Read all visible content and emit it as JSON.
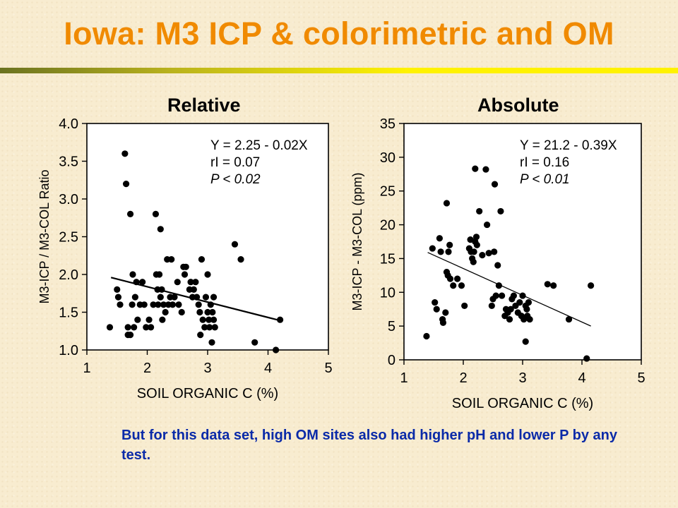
{
  "slide": {
    "title": "Iowa: M3 ICP & colorimetric and OM",
    "relative_heading": "Relative",
    "absolute_heading": "Absolute",
    "footnote": "But for this data set, high OM sites also had higher pH and lower P by any test."
  },
  "chart_data": [
    {
      "type": "scatter",
      "xlabel": "SOIL ORGANIC C (%)",
      "ylabel": "M3-ICP  /  M3-COL Ratio",
      "xlim": [
        1,
        5
      ],
      "ylim": [
        1.0,
        4.0
      ],
      "xticks": [
        "1",
        "2",
        "3",
        "4",
        "5"
      ],
      "yticks": [
        "1.0",
        "1.5",
        "2.0",
        "2.5",
        "3.0",
        "3.5",
        "4.0"
      ],
      "annotation": [
        "Y = 2.25 - 0.02X",
        "rI = 0.07",
        "P < 0.02"
      ],
      "regression": {
        "x1": 1.4,
        "y1": 1.96,
        "x2": 4.15,
        "y2": 1.4
      },
      "points": [
        [
          1.38,
          1.3
        ],
        [
          1.5,
          1.8
        ],
        [
          1.52,
          1.7
        ],
        [
          1.55,
          1.6
        ],
        [
          1.63,
          3.6
        ],
        [
          1.65,
          3.2
        ],
        [
          1.68,
          1.3
        ],
        [
          1.68,
          1.2
        ],
        [
          1.72,
          2.8
        ],
        [
          1.72,
          1.2
        ],
        [
          1.75,
          1.6
        ],
        [
          1.76,
          2.0
        ],
        [
          1.78,
          1.3
        ],
        [
          1.8,
          1.7
        ],
        [
          1.82,
          1.9
        ],
        [
          1.84,
          1.4
        ],
        [
          1.88,
          1.6
        ],
        [
          1.92,
          1.9
        ],
        [
          1.95,
          1.6
        ],
        [
          1.98,
          1.3
        ],
        [
          2.03,
          1.4
        ],
        [
          2.06,
          1.3
        ],
        [
          2.1,
          1.6
        ],
        [
          2.14,
          2.8
        ],
        [
          2.15,
          2.0
        ],
        [
          2.17,
          1.8
        ],
        [
          2.18,
          1.6
        ],
        [
          2.2,
          2.0
        ],
        [
          2.22,
          1.7
        ],
        [
          2.22,
          2.6
        ],
        [
          2.24,
          1.8
        ],
        [
          2.25,
          1.4
        ],
        [
          2.27,
          1.6
        ],
        [
          2.3,
          1.5
        ],
        [
          2.33,
          2.2
        ],
        [
          2.35,
          1.6
        ],
        [
          2.38,
          1.7
        ],
        [
          2.4,
          2.2
        ],
        [
          2.42,
          1.6
        ],
        [
          2.45,
          1.7
        ],
        [
          2.5,
          1.9
        ],
        [
          2.52,
          1.6
        ],
        [
          2.57,
          1.5
        ],
        [
          2.6,
          2.1
        ],
        [
          2.62,
          2.0
        ],
        [
          2.64,
          2.1
        ],
        [
          2.7,
          1.8
        ],
        [
          2.72,
          1.9
        ],
        [
          2.75,
          1.7
        ],
        [
          2.77,
          1.8
        ],
        [
          2.8,
          1.9
        ],
        [
          2.82,
          1.7
        ],
        [
          2.85,
          1.6
        ],
        [
          2.87,
          1.5
        ],
        [
          2.88,
          1.2
        ],
        [
          2.9,
          2.2
        ],
        [
          2.92,
          1.4
        ],
        [
          2.95,
          1.3
        ],
        [
          2.97,
          1.7
        ],
        [
          3.0,
          2.0
        ],
        [
          3.0,
          1.5
        ],
        [
          3.02,
          1.4
        ],
        [
          3.03,
          1.3
        ],
        [
          3.05,
          1.6
        ],
        [
          3.07,
          1.1
        ],
        [
          3.08,
          1.5
        ],
        [
          3.1,
          1.4
        ],
        [
          3.1,
          1.7
        ],
        [
          3.12,
          1.3
        ],
        [
          3.45,
          2.4
        ],
        [
          3.55,
          2.2
        ],
        [
          3.78,
          1.1
        ],
        [
          4.13,
          1.0
        ],
        [
          4.2,
          1.4
        ]
      ]
    },
    {
      "type": "scatter",
      "xlabel": "SOIL ORGANIC C (%)",
      "ylabel": "M3-ICP  -  M3-COL (ppm)",
      "xlim": [
        1,
        5
      ],
      "ylim": [
        0,
        35
      ],
      "xticks": [
        "1",
        "2",
        "3",
        "4",
        "5"
      ],
      "yticks": [
        "0",
        "5",
        "10",
        "15",
        "20",
        "25",
        "30",
        "35"
      ],
      "annotation": [
        "Y = 21.2 - 0.39X",
        "rI = 0.16",
        "P < 0.01"
      ],
      "regression": {
        "x1": 1.4,
        "y1": 15.9,
        "x2": 4.15,
        "y2": 5.0
      },
      "points": [
        [
          1.38,
          3.5
        ],
        [
          1.48,
          16.5
        ],
        [
          1.52,
          8.5
        ],
        [
          1.55,
          7.5
        ],
        [
          1.6,
          18.0
        ],
        [
          1.62,
          16.0
        ],
        [
          1.65,
          6.0
        ],
        [
          1.66,
          5.5
        ],
        [
          1.7,
          7.0
        ],
        [
          1.72,
          23.2
        ],
        [
          1.72,
          13.0
        ],
        [
          1.74,
          12.5
        ],
        [
          1.75,
          16.0
        ],
        [
          1.77,
          17.0
        ],
        [
          1.78,
          12.0
        ],
        [
          1.83,
          11.0
        ],
        [
          1.9,
          12.0
        ],
        [
          1.97,
          11.0
        ],
        [
          2.02,
          8.0
        ],
        [
          2.1,
          16.5
        ],
        [
          2.12,
          17.8
        ],
        [
          2.13,
          16.0
        ],
        [
          2.15,
          15.0
        ],
        [
          2.17,
          14.5
        ],
        [
          2.18,
          16.0
        ],
        [
          2.2,
          17.5
        ],
        [
          2.2,
          28.3
        ],
        [
          2.22,
          18.2
        ],
        [
          2.23,
          17.0
        ],
        [
          2.27,
          22.0
        ],
        [
          2.32,
          15.5
        ],
        [
          2.38,
          28.2
        ],
        [
          2.4,
          20.0
        ],
        [
          2.43,
          15.8
        ],
        [
          2.48,
          8.0
        ],
        [
          2.5,
          9.0
        ],
        [
          2.52,
          16.0
        ],
        [
          2.53,
          26.0
        ],
        [
          2.55,
          9.5
        ],
        [
          2.58,
          14.0
        ],
        [
          2.6,
          11.0
        ],
        [
          2.63,
          22.0
        ],
        [
          2.65,
          9.5
        ],
        [
          2.7,
          6.5
        ],
        [
          2.72,
          7.5
        ],
        [
          2.75,
          7.0
        ],
        [
          2.78,
          6.0
        ],
        [
          2.8,
          7.5
        ],
        [
          2.82,
          9.0
        ],
        [
          2.85,
          9.5
        ],
        [
          2.88,
          8.0
        ],
        [
          2.92,
          7.0
        ],
        [
          2.95,
          8.5
        ],
        [
          2.98,
          6.5
        ],
        [
          3.0,
          9.5
        ],
        [
          3.02,
          6.0
        ],
        [
          3.05,
          2.7
        ],
        [
          3.05,
          8.0
        ],
        [
          3.07,
          7.5
        ],
        [
          3.08,
          6.5
        ],
        [
          3.1,
          8.5
        ],
        [
          3.12,
          6.0
        ],
        [
          3.42,
          11.2
        ],
        [
          3.52,
          11.0
        ],
        [
          3.78,
          6.0
        ],
        [
          4.08,
          0.2
        ],
        [
          4.15,
          11.0
        ]
      ]
    }
  ]
}
